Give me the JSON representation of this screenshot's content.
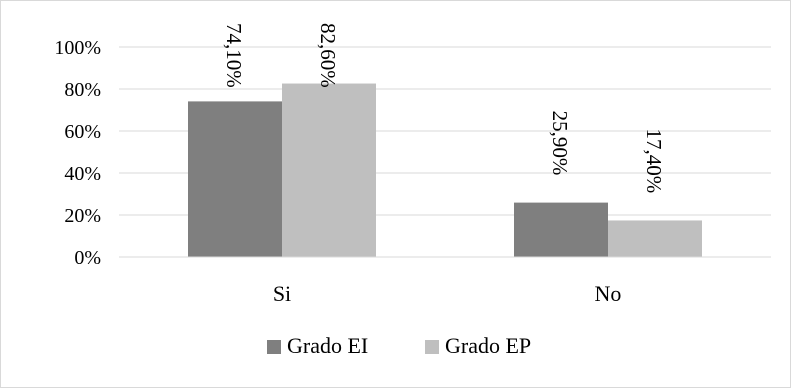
{
  "chart_data": {
    "type": "bar",
    "title": "",
    "xlabel": "",
    "ylabel": "",
    "categories": [
      "Si",
      "No"
    ],
    "series": [
      {
        "name": "Grado EI",
        "values": [
          74.1,
          25.9
        ],
        "labels": [
          "74,10%",
          "25,90%"
        ],
        "color": "#7f7f7f"
      },
      {
        "name": "Grado EP",
        "values": [
          82.6,
          17.4
        ],
        "labels": [
          "82,60%",
          "17,40%"
        ],
        "color": "#bfbfbf"
      }
    ],
    "ylim": [
      0,
      100
    ],
    "yticks": [
      0,
      20,
      40,
      60,
      80,
      100
    ],
    "ytick_labels": [
      "0%",
      "20%",
      "40%",
      "60%",
      "80%",
      "100%"
    ],
    "grid": true,
    "gridline_color": "#d9d9d9",
    "legend_position": "bottom"
  }
}
